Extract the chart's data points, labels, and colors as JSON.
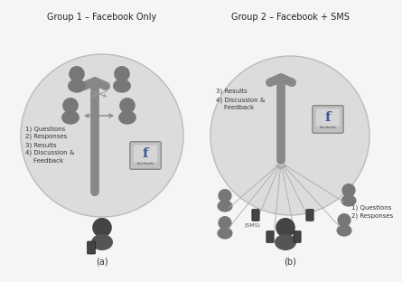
{
  "title_left": "Group 1 – Facebook Only",
  "title_right": "Group 2 – Facebook + SMS",
  "label_a": "(a)",
  "label_b": "(b)",
  "circle_color": "#dcdcdc",
  "circle_edge": "#bbbbbb",
  "arrow_color": "#909090",
  "text_left": "1) Questions\n2) Responses\n3) Results\n4) Discussion &\n    Feedback",
  "text_right_top": "3) Results\n4) Discussion &\n    Feedback",
  "text_right_bottom": "1) Questions\n2) Responses",
  "sms_label": "(SMS)",
  "bg_color": "#f5f5f5",
  "person_color_dark": "#555555",
  "person_color_mid": "#777777",
  "facebook_box_color": "#b8b8b8",
  "facebook_f_color": "#3b5998",
  "facebook_label": "facebook"
}
